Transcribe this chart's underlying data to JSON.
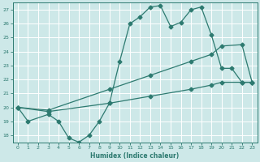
{
  "background_color": "#cde8e8",
  "grid_color": "#ffffff",
  "line_color": "#2d7a70",
  "xlabel": "Humidex (Indice chaleur)",
  "xlim": [
    -0.5,
    23.5
  ],
  "ylim": [
    17.5,
    27.5
  ],
  "yticks": [
    18,
    19,
    20,
    21,
    22,
    23,
    24,
    25,
    26,
    27
  ],
  "xticks": [
    0,
    1,
    2,
    3,
    4,
    5,
    6,
    7,
    8,
    9,
    10,
    11,
    12,
    13,
    14,
    15,
    16,
    17,
    18,
    19,
    20,
    21,
    22,
    23
  ],
  "line1_x": [
    0,
    1,
    3,
    4,
    5,
    6,
    7,
    8,
    9,
    10,
    11,
    12,
    13,
    14,
    15,
    16,
    17,
    18,
    19,
    20,
    21,
    22,
    23
  ],
  "line1_y": [
    20,
    19,
    19.5,
    19,
    17.8,
    17.5,
    18.0,
    19.0,
    20.3,
    23.3,
    26.0,
    26.5,
    27.2,
    27.3,
    25.8,
    26.1,
    27.0,
    27.2,
    25.2,
    22.8,
    22.8,
    21.8,
    21.8
  ],
  "line2_x": [
    0,
    3,
    9,
    13,
    17,
    19,
    20,
    22,
    23
  ],
  "line2_y": [
    20,
    19.8,
    21.3,
    22.3,
    23.3,
    23.8,
    24.4,
    24.5,
    21.8
  ],
  "line3_x": [
    0,
    3,
    9,
    13,
    17,
    19,
    20,
    22,
    23
  ],
  "line3_y": [
    20,
    19.7,
    20.3,
    20.8,
    21.3,
    21.6,
    21.8,
    21.8,
    21.8
  ]
}
